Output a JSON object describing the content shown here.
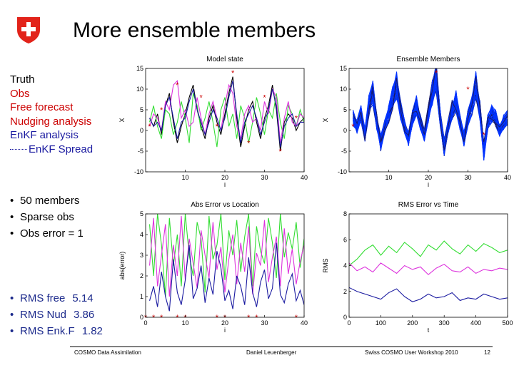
{
  "slide": {
    "title": "More ensemble members",
    "legend": {
      "truth": "Truth",
      "obs": "Obs",
      "free": "Free forecast",
      "nudging": "Nudging analysis",
      "enkf": "EnKF analysis",
      "spread": "EnKF Spread"
    },
    "setup_bullets": [
      "50 members",
      "Sparse obs",
      "Obs error = 1"
    ],
    "rms_bullets": [
      {
        "label": "RMS free",
        "value": "5.14"
      },
      {
        "label": "RMS Nud",
        "value": "3.86"
      },
      {
        "label": "RMS Enk.F",
        "value": "1.82"
      }
    ],
    "footer": {
      "left": "COSMO Data Assimilation",
      "author": "Daniel Leuenberger",
      "event": "Swiss COSMO User Workshop 2010",
      "page": "12"
    }
  },
  "colors": {
    "truth": "#000000",
    "obs": "#cc0000",
    "free": "#33dd33",
    "nudging": "#dd33dd",
    "enkf": "#1a1aa0",
    "ensemble": "#0033ff",
    "swiss_red": "#e2231a"
  },
  "chart_data": [
    {
      "id": "model-state",
      "type": "line",
      "title": "Model state",
      "xlabel": "i",
      "ylabel": "X",
      "xlim": [
        0,
        40
      ],
      "ylim": [
        -10,
        15
      ],
      "xticks": [
        10,
        20,
        30,
        40
      ],
      "yticks": [
        -10,
        -5,
        0,
        5,
        10,
        15
      ],
      "x_start": 1,
      "series": [
        {
          "name": "Truth",
          "color": "#000000",
          "values": [
            3,
            1,
            4,
            -1,
            6,
            9,
            2,
            -3,
            1,
            4,
            8,
            11,
            5,
            1,
            -2,
            3,
            6,
            2,
            -1,
            4,
            9,
            13,
            3,
            -4,
            1,
            5,
            7,
            2,
            -2,
            3,
            6,
            11,
            5,
            -5,
            2,
            4,
            3,
            0,
            2,
            3
          ]
        },
        {
          "name": "Free forecast",
          "color": "#33dd33",
          "values": [
            2,
            6,
            1,
            -2,
            5,
            4,
            -1,
            2,
            7,
            3,
            -3,
            9,
            6,
            0,
            3,
            7,
            2,
            -4,
            5,
            8,
            1,
            4,
            -2,
            6,
            3,
            -3,
            2,
            8,
            4,
            -1,
            5,
            3,
            9,
            2,
            -2,
            6,
            4,
            1,
            5,
            2
          ]
        },
        {
          "name": "Nudging analysis",
          "color": "#dd33dd",
          "values": [
            1,
            4,
            3,
            0,
            7,
            5,
            11,
            12,
            3,
            5,
            1,
            2,
            8,
            3,
            -1,
            4,
            7,
            3,
            0,
            6,
            11,
            9,
            1,
            -2,
            4,
            6,
            2,
            3,
            0,
            7,
            4,
            10,
            8,
            -3,
            3,
            7,
            2,
            1,
            4,
            3
          ]
        },
        {
          "name": "EnKF analysis",
          "color": "#1a1aa0",
          "values": [
            3,
            1,
            2,
            0,
            6,
            8,
            3,
            -2,
            2,
            3,
            7,
            10,
            5,
            2,
            -1,
            2,
            5,
            3,
            0,
            3,
            8,
            12,
            4,
            -3,
            2,
            4,
            6,
            3,
            -1,
            2,
            5,
            10,
            6,
            -4,
            1,
            3,
            4,
            1,
            2,
            2
          ]
        }
      ],
      "obs": {
        "x": [
          1,
          4,
          8,
          14,
          18,
          22,
          26,
          30,
          34,
          38
        ],
        "y": [
          1,
          5,
          11,
          8,
          1,
          14,
          -3,
          8,
          -5,
          3
        ]
      }
    },
    {
      "id": "ensemble-members",
      "type": "line",
      "title": "Ensemble Members",
      "xlabel": "i",
      "ylabel": "X",
      "xlim": [
        0,
        40
      ],
      "ylim": [
        -10,
        15
      ],
      "xticks": [
        10,
        20,
        30,
        40
      ],
      "yticks": [
        -10,
        -5,
        0,
        5,
        10,
        15
      ],
      "x_start": 1,
      "members": 50,
      "series": [
        {
          "name": "Ensemble mean",
          "color": "#0033ff",
          "values": [
            3,
            1,
            4,
            -1,
            6,
            9,
            2,
            -3,
            1,
            4,
            8,
            11,
            5,
            1,
            -2,
            3,
            6,
            2,
            -1,
            4,
            9,
            13,
            3,
            -4,
            1,
            5,
            7,
            2,
            -2,
            3,
            6,
            11,
            5,
            -5,
            2,
            4,
            3,
            0,
            2,
            3
          ]
        }
      ],
      "obs": {
        "x": [
          1,
          22,
          30,
          34
        ],
        "y": [
          1,
          14,
          10,
          -1
        ]
      }
    },
    {
      "id": "abs-error-vs-location",
      "type": "line",
      "title": "Abs Error vs Location",
      "xlabel": "i",
      "ylabel": "abs(error)",
      "xlim": [
        0,
        40
      ],
      "ylim": [
        0,
        5
      ],
      "xticks": [
        0,
        10,
        20,
        30,
        40
      ],
      "yticks": [
        0,
        1,
        2,
        3,
        4,
        5
      ],
      "x_start": 1,
      "series": [
        {
          "name": "Free forecast",
          "color": "#33dd33",
          "values": [
            4.5,
            2,
            5,
            3.5,
            1,
            4.8,
            2.5,
            4,
            1.5,
            5,
            3,
            2,
            4.6,
            3.8,
            1.2,
            4.9,
            2.8,
            3.5,
            5,
            1.8,
            4.2,
            3,
            4.7,
            2.2,
            3.9,
            5,
            1.5,
            4.4,
            3.2,
            2.6,
            4.8,
            3.6,
            1.9,
            5,
            2.9,
            4.1,
            3.3,
            4.6,
            2.4,
            3.8
          ]
        },
        {
          "name": "Nudging analysis",
          "color": "#dd33dd",
          "values": [
            2.5,
            4.8,
            1.5,
            3,
            4.5,
            1,
            3.5,
            2,
            4.9,
            1.8,
            3.8,
            2.6,
            1.4,
            4.2,
            3,
            1.9,
            4.6,
            2.3,
            3.4,
            1.2,
            2.8,
            4,
            1.6,
            3.6,
            2.2,
            4.4,
            1.1,
            3.1,
            2.5,
            4.7,
            1.7,
            2.9,
            3.9,
            1.5,
            4.3,
            2.1,
            3.3,
            1.6,
            2.7,
            3.5
          ]
        },
        {
          "name": "EnKF analysis",
          "color": "#1a1aa0",
          "values": [
            0.8,
            1.5,
            0.5,
            2.2,
            1,
            0.3,
            2.8,
            1.2,
            0.6,
            1.8,
            3.5,
            0.9,
            1.4,
            2.5,
            0.7,
            1.9,
            1.1,
            3.2,
            2.4,
            0.8,
            1.3,
            0.4,
            2,
            1.5,
            0.6,
            2.9,
            1.2,
            0.5,
            1.7,
            2.3,
            0.9,
            1.4,
            3.6,
            1.1,
            0.7,
            1.6,
            2.1,
            0.8,
            1.3,
            0.6
          ]
        }
      ],
      "obs": {
        "x": [
          0,
          2,
          4,
          8,
          10,
          18,
          20,
          26,
          28,
          38
        ],
        "y": [
          0,
          0,
          0,
          0,
          0,
          0,
          0,
          0,
          0,
          0
        ]
      }
    },
    {
      "id": "rms-error-vs-time",
      "type": "line",
      "title": "RMS Error vs Time",
      "xlabel": "t",
      "ylabel": "RMS",
      "xlim": [
        0,
        500
      ],
      "ylim": [
        0,
        8
      ],
      "xticks": [
        0,
        100,
        200,
        300,
        400,
        500
      ],
      "yticks": [
        0,
        2,
        4,
        6,
        8
      ],
      "x": [
        0,
        25,
        50,
        75,
        100,
        125,
        150,
        175,
        200,
        225,
        250,
        275,
        300,
        325,
        350,
        375,
        400,
        425,
        450,
        475,
        500
      ],
      "series": [
        {
          "name": "Free forecast",
          "color": "#33dd33",
          "values": [
            4.0,
            4.5,
            5.2,
            5.6,
            4.8,
            5.5,
            5.0,
            5.8,
            5.3,
            4.7,
            5.6,
            5.2,
            5.9,
            5.3,
            4.9,
            5.6,
            5.1,
            5.7,
            5.4,
            5.0,
            5.2
          ]
        },
        {
          "name": "Nudging analysis",
          "color": "#dd33dd",
          "values": [
            4.2,
            3.6,
            3.9,
            3.5,
            4.2,
            3.8,
            3.4,
            4.0,
            3.7,
            3.9,
            3.3,
            3.8,
            4.1,
            3.6,
            3.5,
            3.9,
            3.4,
            3.7,
            3.6,
            3.8,
            3.7
          ]
        },
        {
          "name": "EnKF analysis",
          "color": "#1a1aa0",
          "values": [
            2.3,
            2.0,
            1.8,
            1.6,
            1.4,
            1.9,
            2.2,
            1.6,
            1.2,
            1.4,
            1.8,
            1.5,
            1.6,
            1.9,
            1.3,
            1.5,
            1.4,
            1.8,
            1.6,
            1.4,
            1.5
          ]
        }
      ]
    }
  ]
}
